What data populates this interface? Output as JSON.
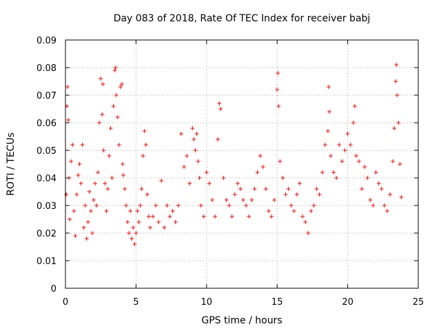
{
  "chart_data": {
    "type": "scatter",
    "title": "Day 083 of 2018, Rate Of TEC Index for receiver babj",
    "xlabel": "GPS time / hours",
    "ylabel": "ROTI / TECUs",
    "xlim": [
      0,
      25
    ],
    "ylim": [
      0,
      0.09
    ],
    "xticks": [
      "0",
      "5",
      "10",
      "15",
      "20",
      "25"
    ],
    "yticks": [
      "0",
      "0.01",
      "0.02",
      "0.03",
      "0.04",
      "0.05",
      "0.06",
      "0.07",
      "0.08",
      "0.09"
    ],
    "grid": true,
    "marker": "+",
    "color": "#ff0000",
    "series": [
      {
        "x": [
          0.05,
          0.1,
          0.15,
          0.2,
          0.25,
          0.3,
          0.4,
          0.5,
          0.6,
          0.7,
          0.8,
          0.9,
          1.0,
          1.1,
          1.2,
          1.3,
          1.4,
          1.5,
          1.6,
          1.7,
          1.8,
          1.9,
          2.0,
          2.1,
          2.2,
          2.3,
          2.4,
          2.5,
          2.6,
          2.65,
          2.7,
          2.8,
          2.9,
          3.0,
          3.1,
          3.2,
          3.3,
          3.4,
          3.5,
          3.55,
          3.6,
          3.7,
          3.8,
          3.9,
          4.0,
          4.05,
          4.1,
          4.2,
          4.3,
          4.4,
          4.5,
          4.6,
          4.7,
          4.8,
          4.9,
          5.0,
          5.1,
          5.2,
          5.3,
          5.4,
          5.5,
          5.6,
          5.7,
          5.8,
          5.9,
          6.0,
          6.2,
          6.4,
          6.6,
          6.8,
          7.0,
          7.2,
          7.4,
          7.6,
          7.8,
          8.0,
          8.2,
          8.4,
          8.6,
          8.8,
          9.0,
          9.1,
          9.2,
          9.3,
          9.4,
          9.5,
          9.6,
          9.8,
          10.0,
          10.2,
          10.4,
          10.6,
          10.8,
          10.9,
          11.0,
          11.2,
          11.4,
          11.6,
          11.8,
          12.0,
          12.2,
          12.4,
          12.6,
          12.8,
          13.0,
          13.2,
          13.4,
          13.6,
          13.8,
          14.0,
          14.2,
          14.4,
          14.6,
          14.8,
          15.0,
          15.05,
          15.1,
          15.2,
          15.4,
          15.6,
          15.8,
          16.0,
          16.2,
          16.4,
          16.6,
          16.8,
          17.0,
          17.2,
          17.4,
          17.6,
          17.8,
          18.0,
          18.2,
          18.4,
          18.6,
          18.65,
          18.7,
          18.8,
          19.0,
          19.2,
          19.4,
          19.6,
          19.8,
          20.0,
          20.2,
          20.4,
          20.5,
          20.6,
          20.8,
          21.0,
          21.2,
          21.4,
          21.6,
          21.8,
          22.0,
          22.2,
          22.4,
          22.6,
          22.8,
          23.0,
          23.2,
          23.3,
          23.4,
          23.45,
          23.5,
          23.6,
          23.7,
          23.8
        ],
        "y": [
          0.034,
          0.066,
          0.073,
          0.061,
          0.04,
          0.025,
          0.046,
          0.052,
          0.028,
          0.019,
          0.034,
          0.041,
          0.045,
          0.038,
          0.052,
          0.022,
          0.03,
          0.018,
          0.024,
          0.035,
          0.028,
          0.02,
          0.032,
          0.038,
          0.03,
          0.042,
          0.06,
          0.076,
          0.063,
          0.074,
          0.05,
          0.038,
          0.028,
          0.036,
          0.048,
          0.058,
          0.04,
          0.066,
          0.079,
          0.08,
          0.07,
          0.062,
          0.052,
          0.073,
          0.074,
          0.045,
          0.041,
          0.036,
          0.03,
          0.024,
          0.02,
          0.028,
          0.018,
          0.022,
          0.016,
          0.02,
          0.028,
          0.024,
          0.03,
          0.036,
          0.048,
          0.057,
          0.052,
          0.034,
          0.026,
          0.022,
          0.026,
          0.03,
          0.024,
          0.039,
          0.022,
          0.03,
          0.026,
          0.028,
          0.024,
          0.03,
          0.056,
          0.044,
          0.048,
          0.038,
          0.058,
          0.054,
          0.05,
          0.056,
          0.046,
          0.04,
          0.03,
          0.026,
          0.042,
          0.038,
          0.032,
          0.026,
          0.054,
          0.067,
          0.065,
          0.04,
          0.032,
          0.03,
          0.026,
          0.034,
          0.038,
          0.036,
          0.032,
          0.03,
          0.026,
          0.032,
          0.036,
          0.042,
          0.048,
          0.044,
          0.036,
          0.028,
          0.026,
          0.032,
          0.072,
          0.078,
          0.066,
          0.046,
          0.04,
          0.034,
          0.036,
          0.03,
          0.028,
          0.034,
          0.038,
          0.026,
          0.024,
          0.02,
          0.028,
          0.03,
          0.036,
          0.034,
          0.042,
          0.052,
          0.057,
          0.073,
          0.064,
          0.048,
          0.042,
          0.04,
          0.052,
          0.046,
          0.05,
          0.056,
          0.052,
          0.06,
          0.066,
          0.048,
          0.046,
          0.036,
          0.044,
          0.04,
          0.032,
          0.03,
          0.042,
          0.038,
          0.036,
          0.03,
          0.028,
          0.034,
          0.046,
          0.058,
          0.075,
          0.081,
          0.07,
          0.06,
          0.045,
          0.033
        ]
      }
    ]
  }
}
